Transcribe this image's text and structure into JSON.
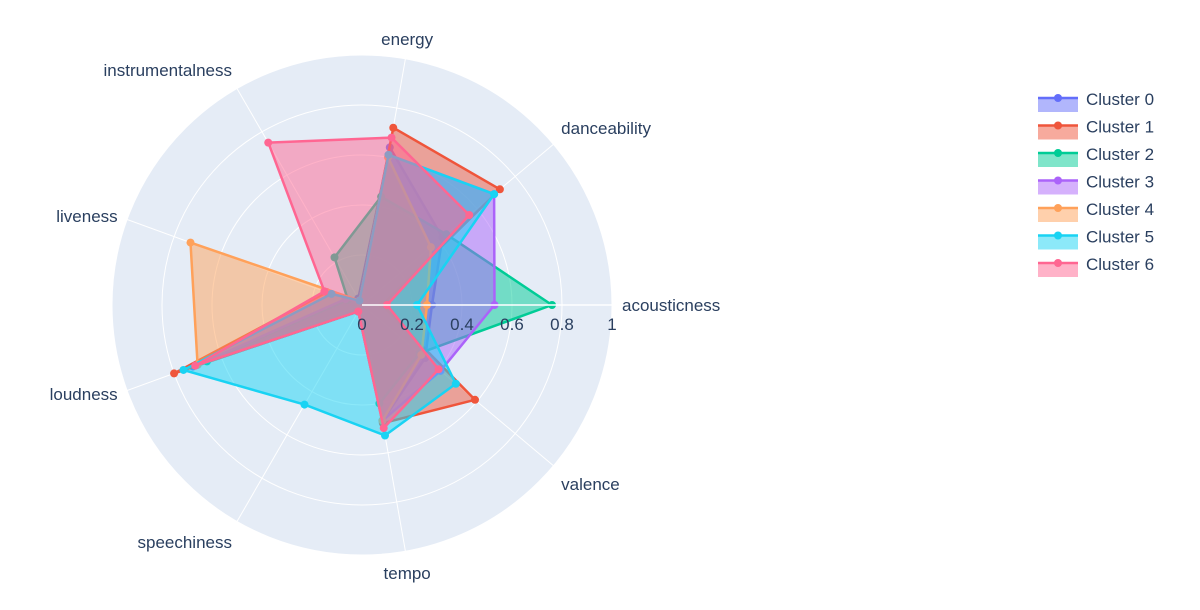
{
  "chart_data": {
    "type": "radar",
    "title": "",
    "axes": [
      "acousticness",
      "danceability",
      "energy",
      "instrumentalness",
      "liveness",
      "loudness",
      "speechiness",
      "tempo",
      "valence"
    ],
    "radial_range": [
      0,
      1
    ],
    "radial_ticks": [
      "0",
      "0.2",
      "0.4",
      "0.6",
      "0.8",
      "1"
    ],
    "grid": true,
    "legend_position": "top-right",
    "series": [
      {
        "name": "Cluster 0",
        "color": "#636efa",
        "values": [
          0.28,
          0.42,
          0.64,
          0.03,
          0.06,
          0.72,
          0.03,
          0.47,
          0.33
        ]
      },
      {
        "name": "Cluster 1",
        "color": "#ef553b",
        "values": [
          0.08,
          0.72,
          0.72,
          0.02,
          0.15,
          0.8,
          0.03,
          0.48,
          0.59
        ]
      },
      {
        "name": "Cluster 2",
        "color": "#00cc96",
        "values": [
          0.76,
          0.44,
          0.44,
          0.22,
          0.06,
          0.66,
          0.03,
          0.4,
          0.3
        ]
      },
      {
        "name": "Cluster 3",
        "color": "#ab63fa",
        "values": [
          0.53,
          0.69,
          0.61,
          0.02,
          0.07,
          0.7,
          0.03,
          0.47,
          0.41
        ]
      },
      {
        "name": "Cluster 4",
        "color": "#ffa15a",
        "values": [
          0.26,
          0.36,
          0.6,
          0.02,
          0.73,
          0.7,
          0.03,
          0.47,
          0.31
        ]
      },
      {
        "name": "Cluster 5",
        "color": "#19d3f3",
        "values": [
          0.22,
          0.69,
          0.61,
          0.02,
          0.13,
          0.76,
          0.46,
          0.53,
          0.49
        ]
      },
      {
        "name": "Cluster 6",
        "color": "#ff6692",
        "values": [
          0.1,
          0.56,
          0.68,
          0.75,
          0.16,
          0.71,
          0.03,
          0.5,
          0.4
        ]
      }
    ]
  }
}
